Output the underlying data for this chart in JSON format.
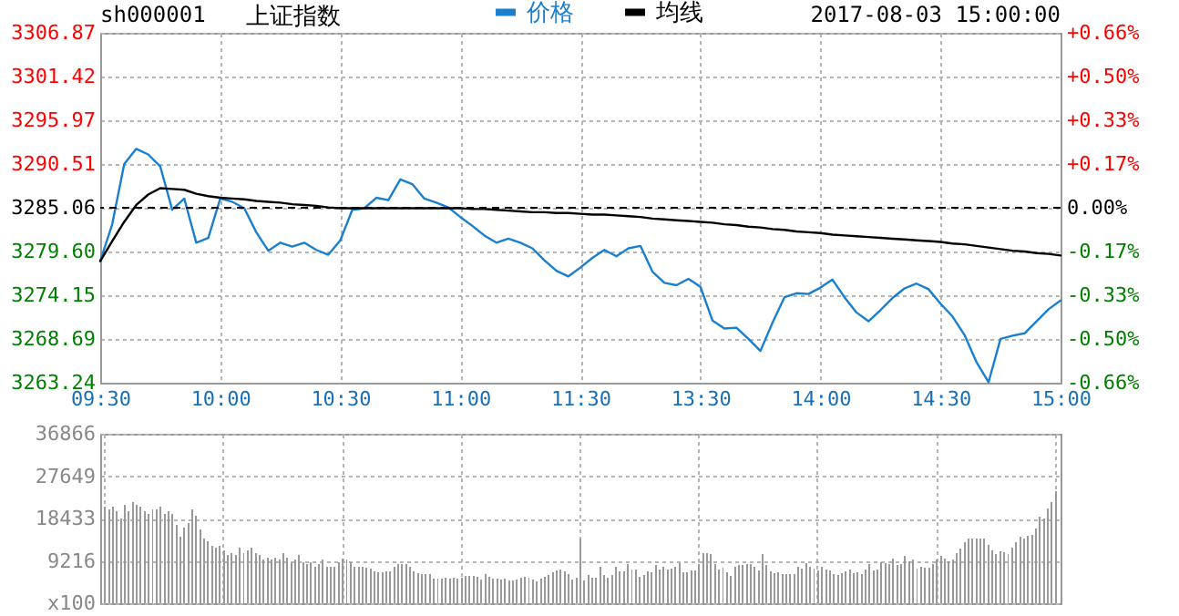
{
  "chart_data": [
    {
      "type": "line",
      "title": "上证指数",
      "annotations": [
        "sh000001",
        "2017-08-03 15:00:00"
      ],
      "legend": "top",
      "grid": true,
      "categories": [
        "09:30",
        null,
        null,
        null,
        null,
        null,
        null,
        null,
        null,
        null,
        "10:00",
        null,
        null,
        null,
        null,
        null,
        null,
        null,
        null,
        null,
        "10:30",
        null,
        null,
        null,
        null,
        null,
        null,
        null,
        null,
        null,
        "11:00",
        null,
        null,
        null,
        null,
        null,
        null,
        null,
        null,
        null,
        "11:30",
        null,
        null,
        null,
        null,
        null,
        null,
        null,
        null,
        null,
        "13:30",
        null,
        null,
        null,
        null,
        null,
        null,
        null,
        null,
        null,
        "14:00",
        null,
        null,
        null,
        null,
        null,
        null,
        null,
        null,
        null,
        "14:30",
        null,
        null,
        null,
        null,
        null,
        null,
        null,
        null,
        null,
        "15:00"
      ],
      "ylim": [
        3263.24,
        3306.87
      ],
      "yticks": [
        3263.24,
        3268.69,
        3274.15,
        {
          "value": 3279.6,
          "label": "3279.60"
        },
        3285.06,
        3290.51,
        3295.97,
        3301.42,
        3306.87
      ],
      "y2lim": [
        -0.664,
        0.664
      ],
      "y2ticks": [
        {
          "value": -0.664,
          "label": "-0.66%"
        },
        {
          "value": -0.498,
          "label": "-0.50%"
        },
        {
          "value": -0.332,
          "label": "-0.33%"
        },
        {
          "value": -0.166,
          "label": "-0.17%"
        },
        {
          "value": 0,
          "label": "0.00%"
        },
        {
          "value": 0.166,
          "label": "+0.17%"
        },
        {
          "value": 0.332,
          "label": "+0.33%"
        },
        {
          "value": 0.498,
          "label": "+0.50%"
        },
        {
          "value": 0.664,
          "label": "+0.66%"
        }
      ],
      "ref_lines": [
        {
          "axis": "y",
          "value": 3285.06,
          "color": "#000000",
          "line_style": "dashed"
        }
      ],
      "series": [
        {
          "name": "价格",
          "color": "#1a7fcf",
          "values": [
            3278.4,
            3283.0,
            3290.5,
            3292.4,
            3291.7,
            3290.2,
            3284.8,
            3286.2,
            3280.7,
            3281.3,
            3286.2,
            3285.8,
            3285.0,
            3282.0,
            3279.7,
            3280.7,
            3280.2,
            3280.7,
            3279.8,
            3279.2,
            3281.0,
            3284.8,
            3285.0,
            3286.3,
            3286.0,
            3288.6,
            3288.0,
            3286.2,
            3285.7,
            3285.1,
            3283.9,
            3282.8,
            3281.6,
            3280.7,
            3281.2,
            3280.7,
            3280.0,
            3278.5,
            3277.2,
            3276.5,
            3277.6,
            3278.8,
            3279.8,
            3279.0,
            3280.0,
            3280.3,
            3277.1,
            3275.7,
            3275.4,
            3276.2,
            3275.2,
            3271.0,
            3270.0,
            3270.1,
            3268.7,
            3267.2,
            3270.7,
            3273.9,
            3274.4,
            3274.3,
            3275.1,
            3276.1,
            3273.9,
            3272.0,
            3270.9,
            3272.3,
            3273.8,
            3275.0,
            3275.6,
            3274.9,
            3273.1,
            3271.5,
            3269.2,
            3265.8,
            3263.3,
            3268.7,
            3269.1,
            3269.4,
            3270.9,
            3272.4,
            3273.5
          ]
        },
        {
          "name": "均线",
          "color": "#000000",
          "values": [
            3278.4,
            3280.9,
            3283.3,
            3285.4,
            3286.7,
            3287.5,
            3287.4,
            3287.3,
            3286.8,
            3286.5,
            3286.3,
            3286.2,
            3286.1,
            3285.9,
            3285.8,
            3285.7,
            3285.5,
            3285.4,
            3285.3,
            3285.1,
            3285.0,
            3285.0,
            3285.0,
            3285.0,
            3285.0,
            3285.0,
            3285.0,
            3285.0,
            3285.0,
            3285.0,
            3285.0,
            3284.9,
            3284.9,
            3284.8,
            3284.7,
            3284.6,
            3284.5,
            3284.5,
            3284.4,
            3284.4,
            3284.3,
            3284.2,
            3284.2,
            3284.1,
            3284.0,
            3283.9,
            3283.7,
            3283.6,
            3283.5,
            3283.4,
            3283.3,
            3283.2,
            3283.0,
            3282.9,
            3282.7,
            3282.6,
            3282.4,
            3282.3,
            3282.1,
            3282.0,
            3281.9,
            3281.7,
            3281.6,
            3281.5,
            3281.4,
            3281.3,
            3281.2,
            3281.1,
            3281.0,
            3280.9,
            3280.8,
            3280.6,
            3280.5,
            3280.3,
            3280.1,
            3279.9,
            3279.7,
            3279.6,
            3279.4,
            3279.3,
            3279.1
          ]
        }
      ]
    },
    {
      "type": "bar",
      "color": "#999999",
      "grid": true,
      "tick_labels": "y",
      "categories": [
        null,
        null,
        null,
        null,
        null,
        null,
        null,
        null,
        null,
        null,
        null,
        null,
        null,
        null,
        null,
        null,
        null,
        null,
        null,
        null,
        null,
        null,
        null,
        null,
        null,
        null,
        null,
        null,
        null,
        null,
        null,
        null,
        null,
        null,
        null,
        null,
        null,
        null,
        null,
        null,
        null,
        null,
        null,
        null,
        null,
        null,
        null,
        null,
        null,
        null,
        null,
        null,
        null,
        null,
        null,
        null,
        null,
        null,
        null,
        null,
        null,
        null,
        null,
        null,
        null,
        null,
        null,
        null,
        null,
        null,
        null,
        null,
        null,
        null,
        null,
        null,
        null,
        null,
        null,
        null,
        null,
        null,
        null,
        null,
        null,
        null,
        null,
        null,
        null,
        null,
        null,
        null,
        null,
        null,
        null,
        null,
        null,
        null,
        null,
        null,
        null,
        null,
        null,
        null,
        null,
        null,
        null,
        null,
        null,
        null,
        null,
        null,
        null,
        null,
        null,
        null,
        null,
        null,
        null,
        null,
        null,
        null,
        null,
        null,
        null,
        null,
        null,
        null,
        null,
        null,
        null,
        null,
        null,
        null,
        null,
        null,
        null,
        null,
        null,
        null,
        null,
        null,
        null,
        null,
        null,
        null,
        null,
        null,
        null,
        null,
        null,
        null,
        null,
        null,
        null,
        null,
        null,
        null,
        null,
        null,
        null,
        null,
        null,
        null,
        null,
        null,
        null,
        null,
        null,
        null,
        null,
        null,
        null,
        null,
        null,
        null,
        null,
        null,
        null,
        null,
        null,
        null,
        null,
        null,
        null,
        null,
        null,
        null,
        null,
        null,
        null,
        null,
        null,
        null,
        null,
        null,
        null,
        null,
        null,
        null,
        null,
        null,
        null,
        null,
        null,
        null,
        null,
        null,
        null,
        null,
        null,
        null,
        null,
        null,
        null,
        null,
        null,
        null,
        null,
        null,
        null,
        null,
        null,
        null,
        null,
        null,
        null,
        null,
        null,
        null,
        null,
        null,
        null,
        null,
        null,
        null,
        null,
        null,
        null,
        null,
        null
      ],
      "ylim": [
        0,
        36866
      ],
      "yticks": [
        {
          "value": 0,
          "label": "x100"
        },
        9216,
        18433,
        27649,
        36866
      ],
      "values": [
        21000,
        20500,
        21000,
        20000,
        18500,
        21500,
        20000,
        22000,
        21500,
        21000,
        20000,
        19500,
        20500,
        20500,
        21000,
        19500,
        20000,
        19500,
        17000,
        14500,
        16500,
        17500,
        20500,
        19000,
        16000,
        14000,
        13500,
        12500,
        12000,
        12500,
        11500,
        10500,
        11000,
        10500,
        12000,
        11000,
        11500,
        12000,
        11000,
        10500,
        9500,
        10000,
        9500,
        10000,
        9500,
        11000,
        10000,
        9000,
        9500,
        10500,
        9000,
        8500,
        9000,
        8000,
        8500,
        9500,
        8000,
        8000,
        8000,
        9000,
        9800,
        9500,
        9000,
        8000,
        8000,
        8000,
        7800,
        7500,
        7000,
        6800,
        6700,
        6900,
        7000,
        8000,
        8600,
        8600,
        8500,
        8000,
        7000,
        6500,
        6400,
        6400,
        6300,
        5300,
        5300,
        5400,
        5500,
        5400,
        5500,
        5300,
        5500,
        6000,
        6000,
        6000,
        5800,
        5200,
        6300,
        5800,
        5400,
        5300,
        5200,
        5300,
        4900,
        5000,
        5200,
        5600,
        5700,
        5600,
        5100,
        4800,
        5400,
        5800,
        6200,
        6800,
        7200,
        7400,
        6900,
        6400,
        5200,
        5500,
        14000,
        4900,
        6100,
        5500,
        5500,
        8000,
        6100,
        5500,
        6100,
        8000,
        7000,
        7000,
        8600,
        7400,
        7400,
        5800,
        6100,
        7000,
        6800,
        8400,
        7400,
        8000,
        7400,
        7600,
        8000,
        8800,
        6800,
        6800,
        7100,
        7100,
        8600,
        11000,
        11000,
        10700,
        8600,
        7400,
        7700,
        6800,
        5900,
        8000,
        8400,
        8400,
        8600,
        8600,
        8000,
        7100,
        10800,
        8400,
        7000,
        6500,
        6800,
        6400,
        6400,
        6400,
        6400,
        8000,
        7600,
        8800,
        8000,
        7600,
        7100,
        8000,
        7400,
        7100,
        6400,
        6100,
        6600,
        6900,
        7400,
        6500,
        6800,
        6400,
        7400,
        8600,
        7100,
        7400,
        9000,
        8800,
        8600,
        9800,
        8400,
        8600,
        10300,
        9200,
        9600,
        7600,
        8000,
        7700,
        7800,
        8500,
        9600,
        10400,
        9800,
        9200,
        9600,
        11000,
        11900,
        13300,
        14000,
        14100,
        14100,
        14100,
        14100,
        12700,
        11500,
        10800,
        11300,
        11100,
        10800,
        12000,
        13300,
        14500,
        14100,
        14700,
        14900,
        16300,
        18900,
        18400,
        20600,
        22000,
        24300
      ]
    }
  ]
}
